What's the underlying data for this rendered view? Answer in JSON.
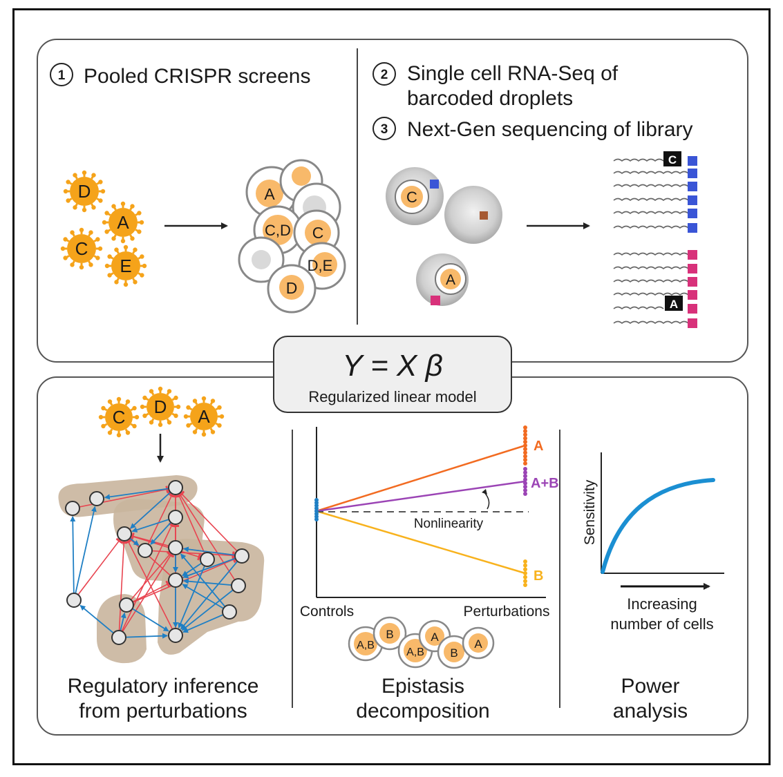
{
  "top": {
    "step1": {
      "num": "1",
      "text": "Pooled CRISPR screens"
    },
    "step2": {
      "num": "2",
      "line1": "Single cell RNA-Seq of",
      "line2": "barcoded droplets"
    },
    "step3": {
      "num": "3",
      "text": "Next-Gen sequencing of library"
    },
    "virus_labels": [
      "D",
      "A",
      "C",
      "E"
    ],
    "cell_labels": [
      "A",
      "C,D",
      "C",
      "D,E",
      "D"
    ],
    "droplet_labels": [
      "C",
      "A"
    ],
    "read_tags": [
      "C",
      "A"
    ]
  },
  "model": {
    "equation": "Y = X β",
    "subtitle": "Regularized linear model"
  },
  "bottom": {
    "virus_labels": [
      "C",
      "D",
      "A"
    ],
    "regulatory_caption": {
      "line1": "Regulatory inference",
      "line2": "from perturbations"
    },
    "epistasis": {
      "series_labels": [
        "A",
        "A+B",
        "B"
      ],
      "nonlinearity": "Nonlinearity",
      "xlabel_left": "Controls",
      "xlabel_right": "Perturbations",
      "cell_labels": [
        "A,B",
        "B",
        "A,B",
        "A",
        "B",
        "A"
      ],
      "caption": {
        "line1": "Epistasis",
        "line2": "decomposition"
      }
    },
    "power": {
      "ylabel": "Sensitivity",
      "xlabel": {
        "line1": "Increasing",
        "line2": "number of cells"
      },
      "caption": {
        "line1": "Power",
        "line2": "analysis"
      }
    }
  },
  "colors": {
    "virus": "#f5a31a",
    "cell_fill": "#f8b96a",
    "red": "#e8434f",
    "blue": "#1f7fc4",
    "orange_line": "#f26b21",
    "purple_line": "#9b44b5",
    "yellow_line": "#f8b21d",
    "module": "#c9b59d",
    "barcode_blue": "#3a55d6",
    "barcode_pink": "#d8317a",
    "power_curve": "#1b8fd2"
  }
}
